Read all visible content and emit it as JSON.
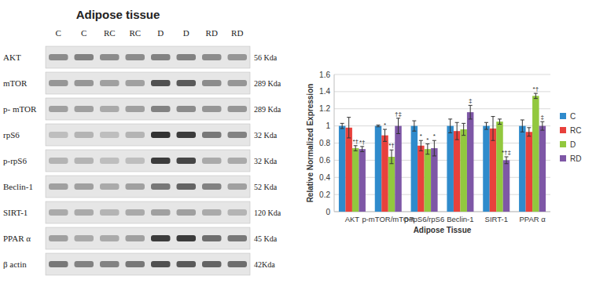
{
  "blot": {
    "title": "Adipose tissue",
    "lanes": [
      "C",
      "C",
      "RC",
      "RC",
      "D",
      "D",
      "RD",
      "RD"
    ],
    "rows": [
      {
        "label": "AKT",
        "size": "56 Kda"
      },
      {
        "label": "mTOR",
        "size": "289 Kda"
      },
      {
        "label": "p- mTOR",
        "size": "289 Kda"
      },
      {
        "label": "rpS6",
        "size": "32 Kda"
      },
      {
        "label": "p-rpS6",
        "size": "32 Kda"
      },
      {
        "label": "Beclin-1",
        "size": "52 Kda"
      },
      {
        "label": "SIRT-1",
        "size": "120 Kda"
      },
      {
        "label": "PPAR α",
        "size": "45 Kda"
      },
      {
        "label": "β actin",
        "size": "42Kda"
      }
    ]
  },
  "chart_data": {
    "type": "bar",
    "x_label": "Adipose Tissue",
    "y_label": "Relative Normalized Expression",
    "categories": [
      "AKT",
      "p-mTOR/mTOR",
      "p-rpS6/rpS6",
      "Beclin-1",
      "SIRT-1",
      "PPAR α"
    ],
    "series": [
      {
        "name": "C",
        "color": "#2f8bcc",
        "values": [
          1.0,
          1.0,
          1.0,
          1.0,
          1.0,
          1.0
        ],
        "errors": [
          0.03,
          0.01,
          0.06,
          0.08,
          0.04,
          0.07
        ],
        "annotations": [
          null,
          null,
          null,
          null,
          null,
          null
        ]
      },
      {
        "name": "RC",
        "color": "#e8413c",
        "values": [
          0.98,
          0.89,
          0.77,
          0.94,
          0.97,
          0.93
        ],
        "errors": [
          0.12,
          0.07,
          0.06,
          0.1,
          0.14,
          0.05
        ],
        "annotations": [
          null,
          "*",
          "*",
          null,
          null,
          null
        ]
      },
      {
        "name": "D",
        "color": "#92c83e",
        "values": [
          0.74,
          0.64,
          0.73,
          0.96,
          1.05,
          1.35
        ],
        "errors": [
          0.03,
          0.08,
          0.06,
          0.07,
          0.03,
          0.03
        ],
        "annotations": [
          "*†",
          "*†",
          "*",
          null,
          null,
          "*†"
        ]
      },
      {
        "name": "RD",
        "color": "#7e57a6",
        "values": [
          0.73,
          1.0,
          0.74,
          1.16,
          0.6,
          1.0
        ],
        "errors": [
          0.03,
          0.09,
          0.09,
          0.08,
          0.04,
          0.05
        ],
        "annotations": [
          "*†",
          "†‡",
          "*",
          "‡",
          "*†‡",
          "‡"
        ]
      }
    ],
    "ylim": [
      0,
      1.6
    ],
    "yticks": [
      0,
      0.2,
      0.4,
      0.6,
      0.8,
      1,
      1.2,
      1.4,
      1.6
    ],
    "grid": true,
    "legend": "right"
  }
}
